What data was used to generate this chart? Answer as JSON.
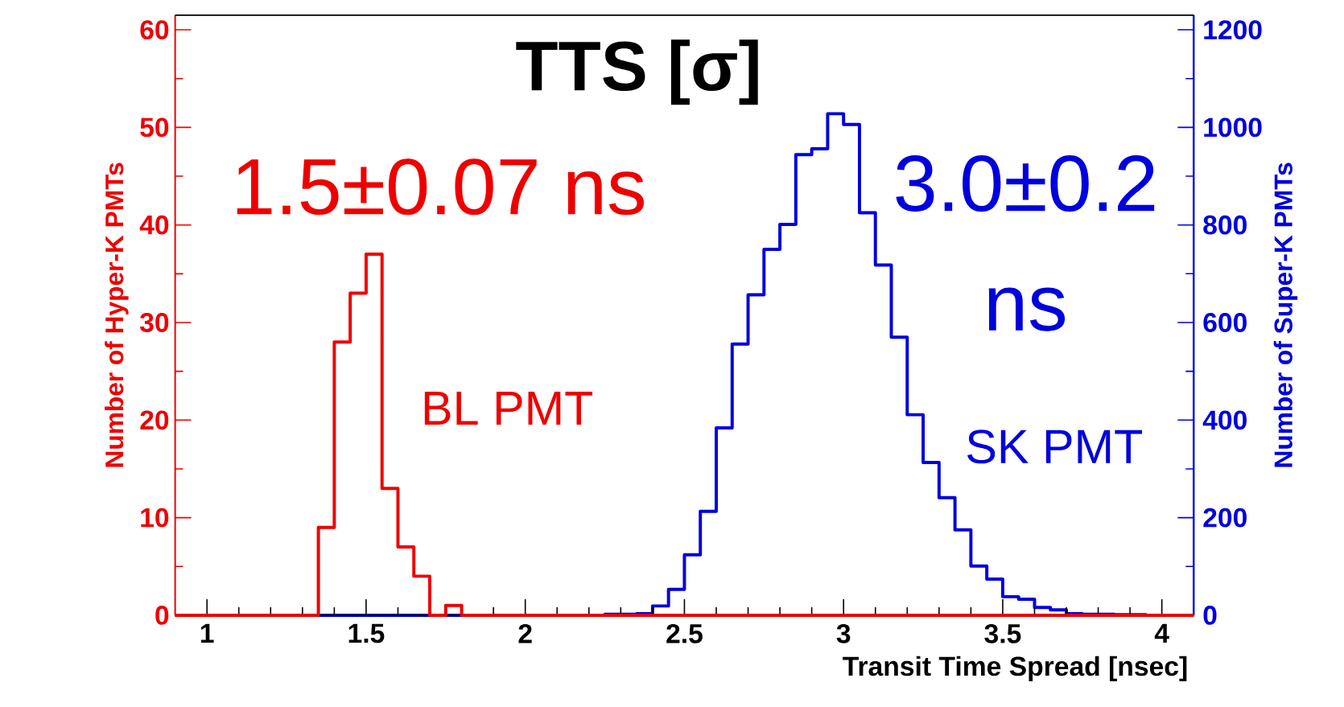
{
  "chart_data": {
    "type": "histogram",
    "title": "TTS [σ]",
    "xlabel": "Transit Time Spread [nsec]",
    "ylabel": "Number of Hyper-K PMTs",
    "y2label": "Number of Super-K PMTs",
    "annotations": [
      "1.5±0.07 ns",
      "3.0±0.2 ns"
    ],
    "bins": [
      0.9,
      0.95,
      1,
      1.05,
      1.1,
      1.15,
      1.2,
      1.25,
      1.3,
      1.35,
      1.4,
      1.45,
      1.5,
      1.55,
      1.6,
      1.65,
      1.7,
      1.75,
      1.8,
      1.85,
      1.9,
      1.95,
      2,
      2.05,
      2.1,
      2.15,
      2.2,
      2.25,
      2.3,
      2.35,
      2.4,
      2.45,
      2.5,
      2.55,
      2.6,
      2.65,
      2.7,
      2.75,
      2.8,
      2.85,
      2.9,
      2.95,
      3,
      3.05,
      3.1,
      3.15,
      3.2,
      3.25,
      3.3,
      3.35,
      3.4,
      3.45,
      3.5,
      3.55,
      3.6,
      3.65,
      3.7,
      3.75,
      3.8,
      3.85,
      3.9,
      3.95,
      4,
      4.05,
      4.1
    ],
    "series": [
      {
        "name": "BL PMT",
        "color": "#ee0000",
        "values": [
          0,
          0,
          0,
          0,
          0,
          0,
          0,
          0,
          0,
          9,
          28,
          33,
          37,
          13,
          7,
          4,
          0,
          1,
          0,
          0,
          0,
          0,
          0,
          0,
          0,
          0,
          0,
          0,
          0,
          0,
          0,
          0,
          0,
          0,
          0,
          0,
          0,
          0,
          0,
          0,
          0,
          0,
          0,
          0,
          0,
          0,
          0,
          0,
          0,
          0,
          0,
          0,
          0,
          0,
          0,
          0,
          0,
          0,
          0,
          0,
          0,
          0,
          0,
          0
        ]
      },
      {
        "name": "SK PMT",
        "color": "#0000dd",
        "axis": "y2",
        "values": [
          0,
          0,
          0,
          0,
          0,
          0,
          0,
          0,
          0,
          0,
          0,
          0,
          0,
          0,
          0,
          0,
          0,
          0,
          0,
          0,
          0,
          0,
          0,
          0,
          0,
          0,
          0,
          2,
          2,
          3,
          19,
          53,
          124,
          213,
          384,
          556,
          657,
          750,
          801,
          944,
          956,
          1028,
          1006,
          825,
          718,
          570,
          411,
          313,
          241,
          175,
          101,
          74,
          38,
          33,
          16,
          11,
          3,
          2,
          2,
          1,
          1,
          0,
          0,
          0
        ]
      }
    ],
    "xlim": [
      0.9,
      4.1
    ],
    "xticks": [
      1,
      1.5,
      2,
      2.5,
      3,
      3.5,
      4
    ],
    "ylim": [
      0,
      61.5
    ],
    "yticks": [
      0,
      10,
      20,
      30,
      40,
      50,
      60
    ],
    "y2lim": [
      0,
      1230
    ],
    "y2ticks": [
      0,
      200,
      400,
      600,
      800,
      1000,
      1200
    ],
    "grid": false
  }
}
